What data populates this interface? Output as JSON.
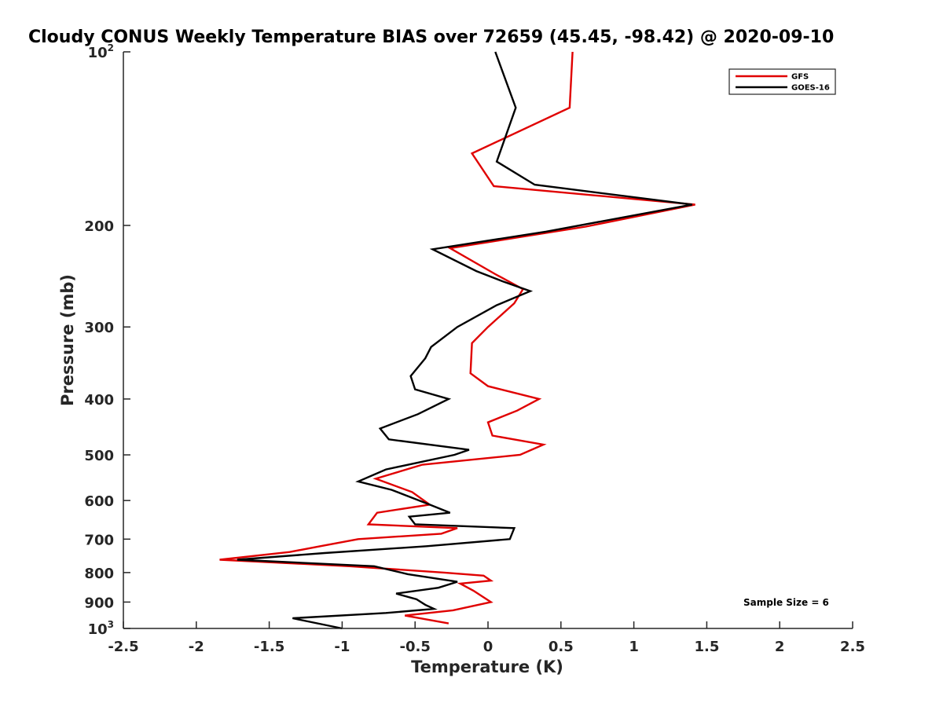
{
  "chart_data": {
    "type": "line",
    "title": "Cloudy CONUS Weekly Temperature BIAS over 72659 (45.45, -98.42) @ 2020-09-10",
    "xlabel": "Temperature (K)",
    "ylabel": "Pressure (mb)",
    "xlim": [
      -2.5,
      2.5
    ],
    "ylim": [
      100,
      1000
    ],
    "y_scale": "log",
    "y_reversed": true,
    "grid": false,
    "legend_position": "top-right",
    "x_ticks": [
      {
        "value": -2.5,
        "label": "-2.5"
      },
      {
        "value": -2,
        "label": "-2"
      },
      {
        "value": -1.5,
        "label": "-1.5"
      },
      {
        "value": -1,
        "label": "-1"
      },
      {
        "value": -0.5,
        "label": "-0.5"
      },
      {
        "value": 0,
        "label": "0"
      },
      {
        "value": 0.5,
        "label": "0.5"
      },
      {
        "value": 1,
        "label": "1"
      },
      {
        "value": 1.5,
        "label": "1.5"
      },
      {
        "value": 2,
        "label": "2"
      },
      {
        "value": 2.5,
        "label": "2.5"
      }
    ],
    "y_ticks": [
      {
        "value": 100,
        "label": "10",
        "sup": "2"
      },
      {
        "value": 200,
        "label": "200"
      },
      {
        "value": 300,
        "label": "300"
      },
      {
        "value": 400,
        "label": "400"
      },
      {
        "value": 500,
        "label": "500"
      },
      {
        "value": 600,
        "label": "600"
      },
      {
        "value": 700,
        "label": "700"
      },
      {
        "value": 800,
        "label": "800"
      },
      {
        "value": 900,
        "label": "900"
      },
      {
        "value": 1000,
        "label": "10",
        "sup": "3"
      }
    ],
    "annotation": "Sample Size = 6",
    "series": [
      {
        "name": "GFS",
        "color": "#e00000",
        "points": [
          [
            0.58,
            100
          ],
          [
            0.56,
            125
          ],
          [
            -0.11,
            150
          ],
          [
            0.04,
            171
          ],
          [
            1.42,
            184
          ],
          [
            0.67,
            201
          ],
          [
            -0.26,
            219
          ],
          [
            0.05,
            243
          ],
          [
            0.24,
            258
          ],
          [
            0.18,
            273
          ],
          [
            0.0,
            300
          ],
          [
            -0.11,
            320
          ],
          [
            -0.12,
            361
          ],
          [
            0.0,
            380
          ],
          [
            0.35,
            400
          ],
          [
            0.2,
            419
          ],
          [
            0.0,
            439
          ],
          [
            0.03,
            463
          ],
          [
            0.38,
            480
          ],
          [
            0.22,
            500
          ],
          [
            -0.45,
            520
          ],
          [
            -0.77,
            550
          ],
          [
            -0.52,
            580
          ],
          [
            -0.4,
            610
          ],
          [
            -0.76,
            630
          ],
          [
            -0.82,
            660
          ],
          [
            -0.21,
            670
          ],
          [
            -0.32,
            685
          ],
          [
            -0.89,
            700
          ],
          [
            -1.15,
            720
          ],
          [
            -1.36,
            737
          ],
          [
            -1.84,
            760
          ],
          [
            -0.95,
            780
          ],
          [
            -0.3,
            800
          ],
          [
            -0.03,
            810
          ],
          [
            0.02,
            826
          ],
          [
            -0.19,
            836
          ],
          [
            -0.1,
            860
          ],
          [
            0.02,
            900
          ],
          [
            -0.24,
            930
          ],
          [
            -0.57,
            950
          ],
          [
            -0.27,
            980
          ]
        ]
      },
      {
        "name": "GOES-16",
        "color": "#000000",
        "points": [
          [
            0.05,
            100
          ],
          [
            0.19,
            125
          ],
          [
            0.06,
            155
          ],
          [
            0.32,
            170
          ],
          [
            1.4,
            184
          ],
          [
            0.4,
            205
          ],
          [
            -0.38,
            220
          ],
          [
            -0.08,
            240
          ],
          [
            0.1,
            250
          ],
          [
            0.29,
            260
          ],
          [
            0.06,
            275
          ],
          [
            -0.21,
            300
          ],
          [
            -0.39,
            325
          ],
          [
            -0.43,
            340
          ],
          [
            -0.53,
            365
          ],
          [
            -0.5,
            385
          ],
          [
            -0.27,
            400
          ],
          [
            -0.48,
            425
          ],
          [
            -0.74,
            450
          ],
          [
            -0.68,
            470
          ],
          [
            -0.13,
            490
          ],
          [
            -0.23,
            500
          ],
          [
            -0.7,
            530
          ],
          [
            -0.89,
            556
          ],
          [
            -0.66,
            575
          ],
          [
            -0.4,
            610
          ],
          [
            -0.26,
            630
          ],
          [
            -0.54,
            640
          ],
          [
            -0.5,
            660
          ],
          [
            0.18,
            670
          ],
          [
            0.15,
            700
          ],
          [
            -0.42,
            720
          ],
          [
            -1.12,
            740
          ],
          [
            -1.72,
            760
          ],
          [
            -0.78,
            780
          ],
          [
            -0.55,
            805
          ],
          [
            -0.21,
            830
          ],
          [
            -0.34,
            850
          ],
          [
            -0.63,
            870
          ],
          [
            -0.49,
            890
          ],
          [
            -0.43,
            910
          ],
          [
            -0.37,
            925
          ],
          [
            -0.7,
            940
          ],
          [
            -1.34,
            960
          ],
          [
            -1.0,
            1000
          ]
        ]
      }
    ]
  }
}
